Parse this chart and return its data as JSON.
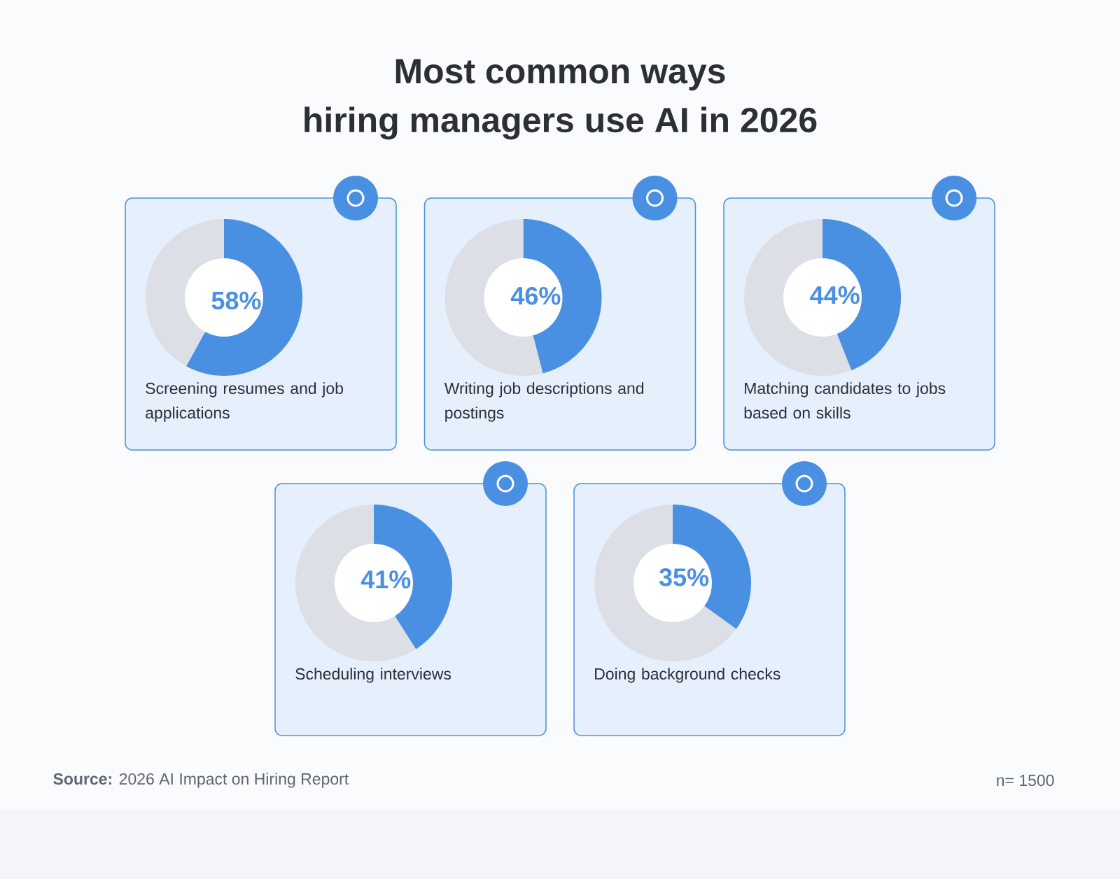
{
  "chart_data": [
    {
      "type": "other",
      "title": "Most common ways",
      "subtitle": "hiring managers use AI in 2026",
      "annotations": [
        "**Source:** 2026 AI Impact on Hiring Report",
        "n= 1500"
      ]
    },
    {
      "type": "donut",
      "title": "Screening resumes and job applications",
      "categories": [
        null,
        null
      ],
      "values": [
        58,
        42
      ],
      "colors": [
        "#4a90e2",
        "#dcdfe5"
      ],
      "value_labels": [
        "58%",
        null
      ]
    },
    {
      "type": "donut",
      "title": "Writing job descriptions and postings",
      "categories": [
        null,
        null
      ],
      "values": [
        46,
        54
      ],
      "colors": [
        "#4a90e2",
        "#dcdfe5"
      ],
      "value_labels": [
        "46%",
        null
      ]
    },
    {
      "type": "donut",
      "title": "Matching candidates to jobs based on skills",
      "categories": [
        null,
        null
      ],
      "values": [
        44,
        56
      ],
      "colors": [
        "#4a90e2",
        "#dcdfe5"
      ],
      "value_labels": [
        "44%",
        null
      ]
    },
    {
      "type": "donut",
      "title": "Scheduling interviews",
      "categories": [
        null,
        null
      ],
      "values": [
        41,
        59
      ],
      "colors": [
        "#4a90e2",
        "#dcdfe5"
      ],
      "value_labels": [
        "41%",
        null
      ]
    },
    {
      "type": "donut",
      "title": "Doing background checks",
      "categories": [
        null,
        null
      ],
      "values": [
        35,
        65
      ],
      "colors": [
        "#4a90e2",
        "#dcdfe5"
      ],
      "value_labels": [
        "35%",
        null
      ]
    }
  ]
}
